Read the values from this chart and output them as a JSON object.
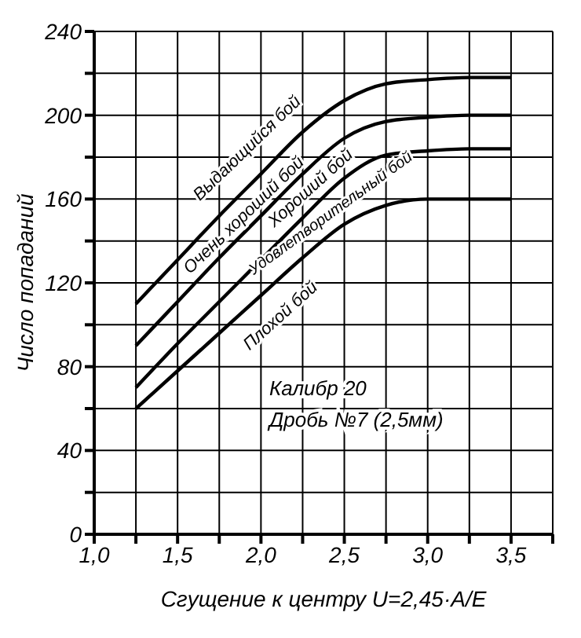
{
  "chart_data": {
    "type": "line",
    "xlabel": "Сгущение к центру U=2,45·A/E",
    "ylabel": "Число попаданий",
    "x": [
      1.25,
      1.5,
      1.75,
      2.0,
      2.25,
      2.5,
      2.75,
      3.0,
      3.25,
      3.5
    ],
    "series": [
      {
        "color": "#000000",
        "values": [
          110,
          131,
          152,
          172,
          192,
          207,
          215,
          217,
          218,
          218
        ]
      },
      {
        "color": "#000000",
        "values": [
          90,
          111,
          132,
          152,
          172,
          189,
          197,
          199,
          200,
          200
        ]
      },
      {
        "color": "#000000",
        "values": [
          70,
          91,
          111,
          131,
          151,
          170,
          181,
          183,
          184,
          184
        ]
      },
      {
        "color": "#000000",
        "values": [
          60,
          78,
          96,
          114,
          132,
          148,
          157,
          160,
          160,
          160
        ]
      }
    ],
    "xlim": [
      1.0,
      3.75
    ],
    "xticks": [
      {
        "value": 1.0,
        "label": "1,0"
      },
      {
        "value": 1.25,
        "label": null
      },
      {
        "value": 1.5,
        "label": "1,5"
      },
      {
        "value": 1.75,
        "label": null
      },
      {
        "value": 2.0,
        "label": "2,0"
      },
      {
        "value": 2.25,
        "label": null
      },
      {
        "value": 2.5,
        "label": "2,5"
      },
      {
        "value": 2.75,
        "label": null
      },
      {
        "value": 3.0,
        "label": "3,0"
      },
      {
        "value": 3.25,
        "label": null
      },
      {
        "value": 3.5,
        "label": "3,5"
      },
      {
        "value": 3.75,
        "label": null
      }
    ],
    "ylim": [
      0,
      240
    ],
    "yticks": [
      0,
      {
        "value": 20,
        "label": null
      },
      40,
      {
        "value": 60,
        "label": null
      },
      80,
      {
        "value": 100,
        "label": null
      },
      120,
      {
        "value": 140,
        "label": null
      },
      160,
      {
        "value": 180,
        "label": null
      },
      200,
      {
        "value": 220,
        "label": null
      },
      240
    ],
    "grid": true,
    "marker": "none",
    "line_style": "solid",
    "annotations": [
      "Выдающийся бой",
      "Очень хороший бой",
      "Хороший бой",
      "Удовлетворительный бой",
      "Плохой бой",
      "Калибр 20",
      "Дробь №7 (2,5мм)"
    ]
  }
}
